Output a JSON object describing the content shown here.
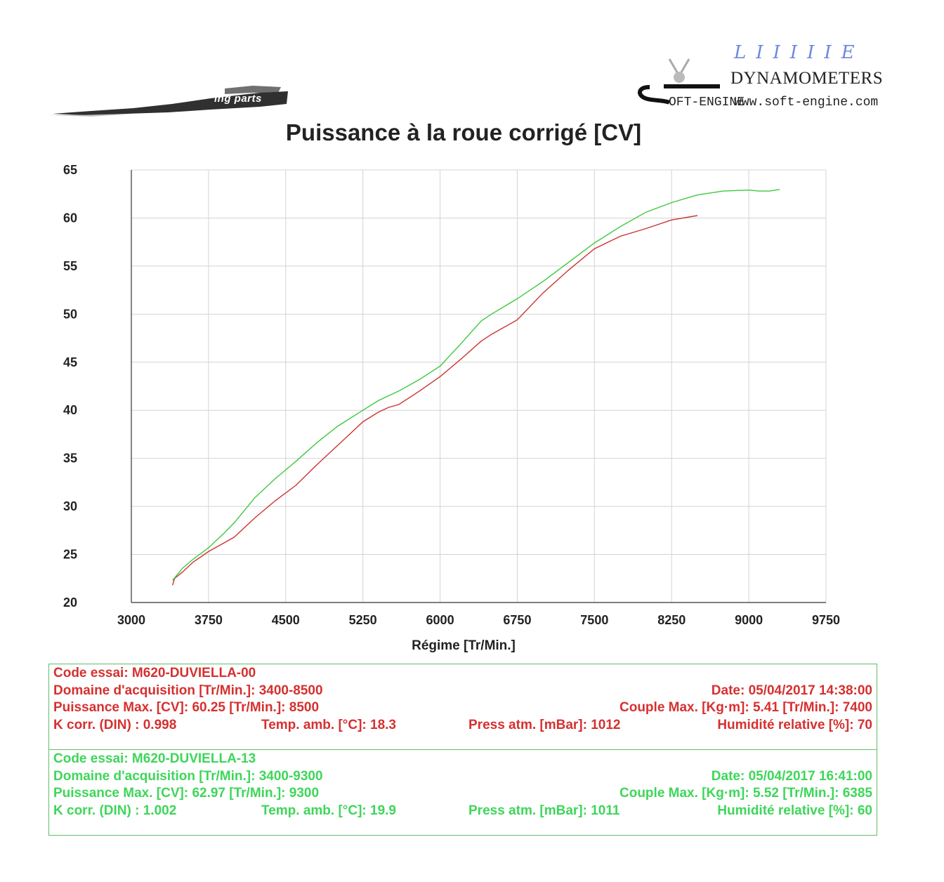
{
  "header": {
    "logo_left_text": "ing parts",
    "brand_script": "LIIIIIE",
    "brand_name": "DYNAMOMETERS",
    "brand_sub": "OFT-ENGINE",
    "brand_url": "www.soft-engine.com"
  },
  "chart_data": {
    "type": "line",
    "title": "Puissance à la roue corrigé [CV]",
    "xlabel": "Régime [Tr/Min.]",
    "ylabel": "",
    "xlim": [
      3000,
      9750
    ],
    "ylim": [
      20,
      65
    ],
    "x_ticks": [
      3000,
      3750,
      4500,
      5250,
      6000,
      6750,
      7500,
      8250,
      9000,
      9750
    ],
    "y_ticks": [
      20,
      25,
      30,
      35,
      40,
      45,
      50,
      55,
      60,
      65
    ],
    "grid": true,
    "series": [
      {
        "color": "#cc3333",
        "points": [
          [
            3400,
            21.8
          ],
          [
            3420,
            22.5
          ],
          [
            3500,
            23.2
          ],
          [
            3600,
            24.2
          ],
          [
            3750,
            25.3
          ],
          [
            3900,
            26.2
          ],
          [
            4000,
            26.8
          ],
          [
            4200,
            28.8
          ],
          [
            4400,
            30.6
          ],
          [
            4600,
            32.2
          ],
          [
            4800,
            34.3
          ],
          [
            5000,
            36.3
          ],
          [
            5100,
            37.3
          ],
          [
            5250,
            38.8
          ],
          [
            5400,
            39.8
          ],
          [
            5500,
            40.3
          ],
          [
            5600,
            40.6
          ],
          [
            5700,
            41.3
          ],
          [
            5800,
            42.0
          ],
          [
            6000,
            43.5
          ],
          [
            6200,
            45.3
          ],
          [
            6400,
            47.2
          ],
          [
            6500,
            47.9
          ],
          [
            6750,
            49.4
          ],
          [
            7000,
            52.2
          ],
          [
            7250,
            54.6
          ],
          [
            7500,
            56.8
          ],
          [
            7750,
            58.1
          ],
          [
            8000,
            58.9
          ],
          [
            8250,
            59.8
          ],
          [
            8500,
            60.25
          ]
        ]
      },
      {
        "color": "#3ec83e",
        "points": [
          [
            3400,
            22.3
          ],
          [
            3500,
            23.6
          ],
          [
            3600,
            24.5
          ],
          [
            3750,
            25.7
          ],
          [
            3900,
            27.2
          ],
          [
            4000,
            28.3
          ],
          [
            4200,
            30.9
          ],
          [
            4400,
            32.9
          ],
          [
            4500,
            33.8
          ],
          [
            4600,
            34.7
          ],
          [
            4800,
            36.6
          ],
          [
            5000,
            38.3
          ],
          [
            5250,
            40.0
          ],
          [
            5400,
            41.0
          ],
          [
            5600,
            42.0
          ],
          [
            5800,
            43.2
          ],
          [
            6000,
            44.6
          ],
          [
            6200,
            46.9
          ],
          [
            6400,
            49.3
          ],
          [
            6500,
            50.0
          ],
          [
            6750,
            51.6
          ],
          [
            7000,
            53.4
          ],
          [
            7250,
            55.4
          ],
          [
            7500,
            57.4
          ],
          [
            7750,
            59.1
          ],
          [
            8000,
            60.6
          ],
          [
            8250,
            61.6
          ],
          [
            8500,
            62.4
          ],
          [
            8750,
            62.8
          ],
          [
            9000,
            62.9
          ],
          [
            9100,
            62.8
          ],
          [
            9200,
            62.8
          ],
          [
            9300,
            62.97
          ]
        ]
      }
    ]
  },
  "tests": [
    {
      "color": "#d63030",
      "code": "Code essai: M620-DUVIELLA-00",
      "domain": "Domaine d'acquisition [Tr/Min.]: 3400-8500",
      "date": "Date: 05/04/2017   14:38:00",
      "power": "Puissance Max. [CV]: 60.25   [Tr/Min.]: 8500",
      "torque": "Couple Max. [Kg·m]: 5.41   [Tr/Min.]: 7400",
      "kcorr": "K corr. (DIN) : 0.998",
      "temp": "Temp. amb. [°C]: 18.3",
      "press": "Press atm. [mBar]: 1012",
      "humidity": "Humidité relative [%]: 70"
    },
    {
      "color": "#3ed65a",
      "code": "Code essai: M620-DUVIELLA-13",
      "domain": "Domaine d'acquisition [Tr/Min.]: 3400-9300",
      "date": "Date: 05/04/2017   16:41:00",
      "power": "Puissance Max. [CV]: 62.97   [Tr/Min.]: 9300",
      "torque": "Couple Max. [Kg·m]: 5.52   [Tr/Min.]: 6385",
      "kcorr": "K corr. (DIN) : 1.002",
      "temp": "Temp. amb. [°C]: 19.9",
      "press": "Press atm. [mBar]: 1011",
      "humidity": "Humidité relative [%]: 60"
    }
  ]
}
